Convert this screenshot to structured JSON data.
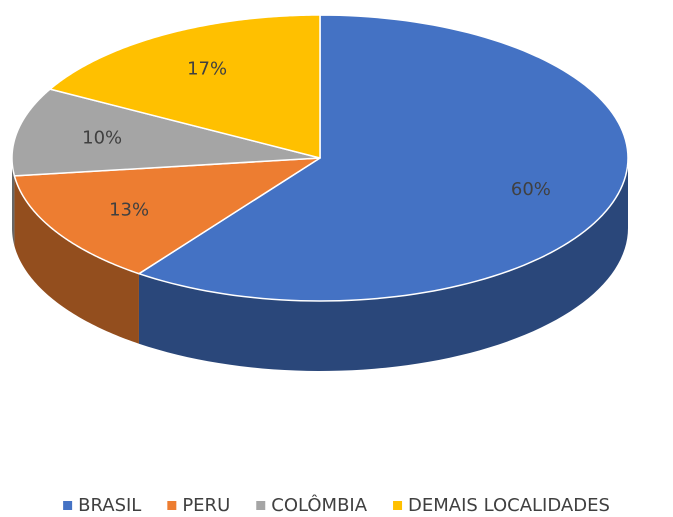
{
  "chart_data": {
    "type": "pie",
    "categories": [
      "BRASIL",
      "PERU",
      "COLÔMBIA",
      "DEMAIS LOCALIDADES"
    ],
    "values": [
      60,
      13,
      10,
      17
    ],
    "value_labels": [
      "60%",
      "13%",
      "10%",
      "17%"
    ],
    "colors": [
      "#4472c4",
      "#ed7d31",
      "#a5a5a5",
      "#ffc000"
    ],
    "legend": "bottom"
  }
}
